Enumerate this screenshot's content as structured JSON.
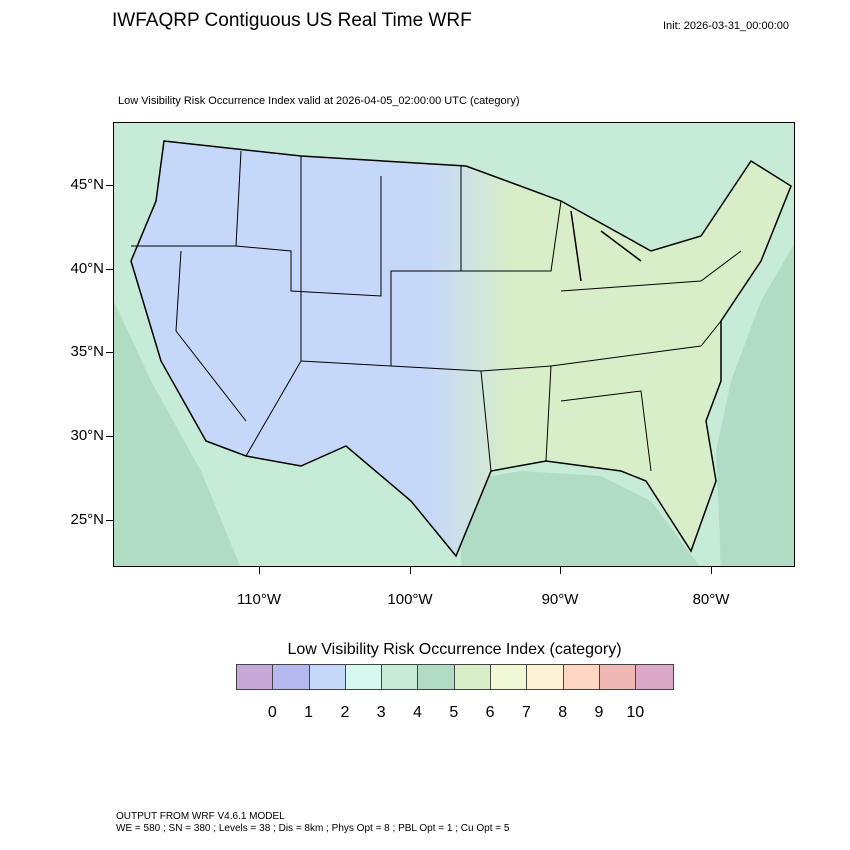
{
  "header": {
    "title": "IWFAQRP Contiguous US Real Time WRF",
    "init": "Init: 2026-03-31_00:00:00",
    "subtitle": "Low Visibility Risk Occurrence Index valid at 2026-04-05_02:00:00 UTC   (category)"
  },
  "map": {
    "lat_labels": [
      "45°N",
      "40°N",
      "35°N",
      "30°N",
      "25°N"
    ],
    "lon_labels": [
      "110°W",
      "100°W",
      "90°W",
      "80°W"
    ],
    "land_color": "#c6ecd8",
    "ocean_color": "#b0dcc4",
    "west_color": "#c6d8fa",
    "east_color": "#d8eec8"
  },
  "colorbar": {
    "title": "Low Visibility Risk Occurrence Index  (category)",
    "colors": [
      "#c8a8d8",
      "#b4b8ee",
      "#c6d8fa",
      "#d6f8ee",
      "#c6ecd8",
      "#b0dcc4",
      "#d8eec8",
      "#f0f8d6",
      "#fef2d6",
      "#fed6c4",
      "#f0b8b4",
      "#dca8c8"
    ],
    "labels": [
      "0",
      "1",
      "2",
      "3",
      "4",
      "5",
      "6",
      "7",
      "8",
      "9",
      "10"
    ]
  },
  "footer": {
    "line1": "OUTPUT FROM WRF V4.6.1 MODEL",
    "line2": "WE = 580 ; SN = 380 ; Levels = 38 ; Dis = 8km ; Phys Opt = 8 ; PBL Opt = 1 ; Cu Opt = 5"
  }
}
